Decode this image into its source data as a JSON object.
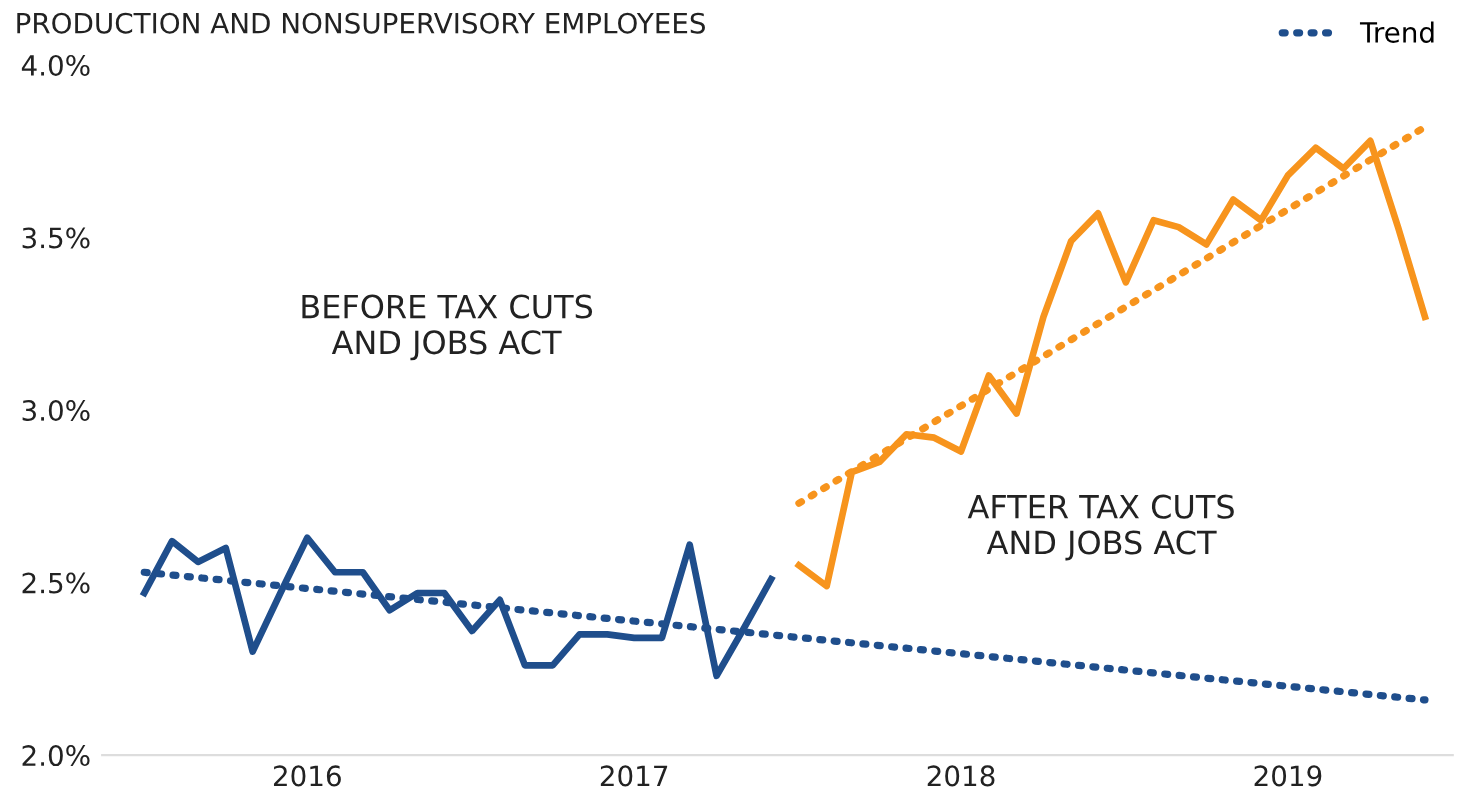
{
  "chart_data": {
    "type": "line",
    "title": "PRODUCTION AND NONSUPERVISORY EMPLOYEES",
    "x": [
      "2016-01",
      "2016-02",
      "2016-03",
      "2016-04",
      "2016-05",
      "2016-06",
      "2016-07",
      "2016-08",
      "2016-09",
      "2016-10",
      "2016-11",
      "2016-12",
      "2017-01",
      "2017-02",
      "2017-03",
      "2017-04",
      "2017-05",
      "2017-06",
      "2017-07",
      "2017-08",
      "2017-09",
      "2017-10",
      "2017-11",
      "2017-12"
    ],
    "series": [
      {
        "color": "#1f4e8c",
        "values": [
          2.47,
          2.62,
          2.56,
          2.6,
          2.3,
          2.47,
          2.63,
          2.53,
          2.53,
          2.42,
          2.47,
          2.47,
          2.36,
          2.45,
          2.26,
          2.26,
          2.35,
          2.35,
          2.34,
          2.34,
          2.61,
          2.23,
          2.37,
          2.51
        ]
      },
      {
        "color": "#f7941d",
        "x": [
          "2018-01",
          "2018-02",
          "2018-03",
          "2018-04",
          "2018-05",
          "2018-06",
          "2018-07",
          "2018-08",
          "2018-09",
          "2018-10",
          "2018-11",
          "2018-12",
          "2019-01",
          "2019-02",
          "2019-03",
          "2019-04",
          "2019-05",
          "2019-06",
          "2019-07",
          "2019-08",
          "2019-09",
          "2019-10",
          "2019-11",
          "2019-12"
        ],
        "values": [
          2.55,
          2.49,
          2.82,
          2.85,
          2.93,
          2.92,
          2.88,
          3.1,
          2.99,
          3.27,
          3.49,
          3.57,
          3.37,
          3.55,
          3.53,
          3.48,
          3.61,
          3.55,
          3.68,
          3.76,
          3.7,
          3.78,
          3.53,
          3.27
        ]
      },
      {
        "name": "Trend",
        "color": "#1f4e8c",
        "line_style": "dotted",
        "x": [
          "2016-01",
          "2019-12"
        ],
        "values": [
          2.53,
          2.16
        ]
      },
      {
        "color": "#f7941d",
        "line_style": "dotted",
        "x": [
          "2018-01",
          "2019-12"
        ],
        "values": [
          2.73,
          3.82
        ]
      }
    ],
    "xticks": [
      {
        "value": "2016-07",
        "label": "2016"
      },
      {
        "value": "2017-07",
        "label": "2017"
      },
      {
        "value": "2018-07",
        "label": "2018"
      },
      {
        "value": "2019-07",
        "label": "2019"
      }
    ],
    "xlim": [
      "2015-11-15",
      "2020-01-01"
    ],
    "ylim": [
      2.0,
      4.0
    ],
    "yticks": [
      {
        "value": 2.0,
        "label": "2.0%"
      },
      {
        "value": 2.5,
        "label": "2.5%"
      },
      {
        "value": 3.0,
        "label": "3.0%"
      },
      {
        "value": 3.5,
        "label": "3.5%"
      },
      {
        "value": 4.0,
        "label": "4.0%"
      }
    ],
    "annotations": [
      "BEFORE TAX CUTS\nAND JOBS ACT",
      "AFTER TAX CUTS\nAND JOBS ACT"
    ],
    "legend": "top right",
    "grid": false
  }
}
